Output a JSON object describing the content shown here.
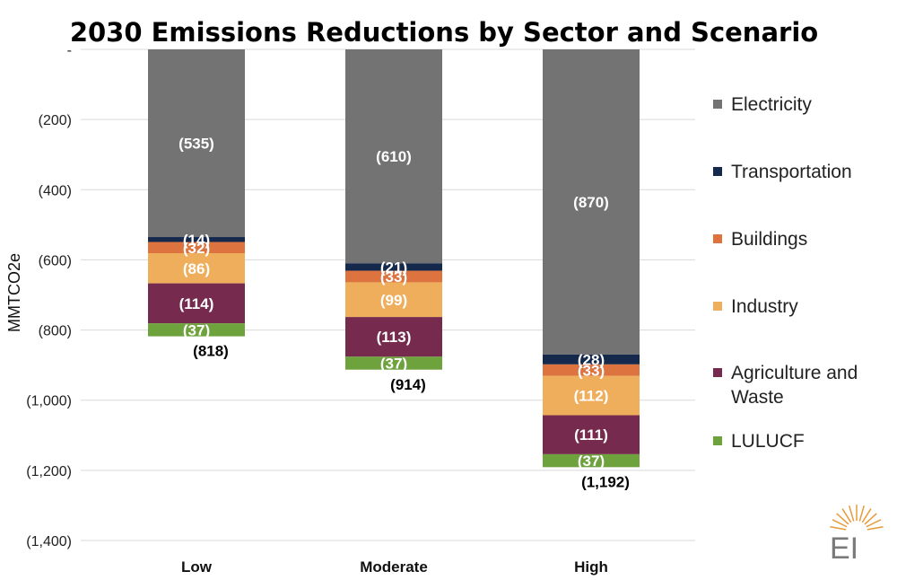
{
  "chart_data": {
    "type": "bar",
    "stacked": true,
    "title": "2030 Emissions Reductions by Sector and Scenario",
    "ylabel": "MMTCO2e",
    "ylim": [
      -1400,
      0
    ],
    "grid": true,
    "legend_position": "right",
    "categories": [
      "Low",
      "Moderate",
      "High"
    ],
    "yticks": [
      {
        "value": 0,
        "label": "-"
      },
      {
        "value": -200,
        "label": "(200)"
      },
      {
        "value": -400,
        "label": "(400)"
      },
      {
        "value": -600,
        "label": "(600)"
      },
      {
        "value": -800,
        "label": "(800)"
      },
      {
        "value": -1000,
        "label": "(1,000)"
      },
      {
        "value": -1200,
        "label": "(1,200)"
      },
      {
        "value": -1400,
        "label": "(1,400)"
      }
    ],
    "series": [
      {
        "name": "Electricity",
        "color": "#737373",
        "label_color": "#ffffff",
        "values": [
          -535,
          -610,
          -870
        ],
        "labels": [
          "(535)",
          "(610)",
          "(870)"
        ]
      },
      {
        "name": "Transportation",
        "color": "#15294d",
        "label_color": "#ffffff",
        "values": [
          -14,
          -21,
          -28
        ],
        "labels": [
          "(14)",
          "(21)",
          "(28)"
        ]
      },
      {
        "name": "Buildings",
        "color": "#dd7440",
        "label_color": "#ffffff",
        "values": [
          -32,
          -33,
          -33
        ],
        "labels": [
          "(32)",
          "(33)",
          "(33)"
        ]
      },
      {
        "name": "Industry",
        "color": "#eeae5c",
        "label_color": "#ffffff",
        "values": [
          -86,
          -99,
          -112
        ],
        "labels": [
          "(86)",
          "(99)",
          "(112)"
        ]
      },
      {
        "name": "Agriculture and Waste",
        "color": "#762a4e",
        "label_color": "#ffffff",
        "values": [
          -114,
          -113,
          -111
        ],
        "labels": [
          "(114)",
          "(113)",
          "(111)"
        ]
      },
      {
        "name": "LULUCF",
        "color": "#6ea23d",
        "label_color": "#ffffff",
        "values": [
          -37,
          -37,
          -37
        ],
        "labels": [
          "(37)",
          "(37)",
          "(37)"
        ]
      }
    ],
    "totals": [
      {
        "value": -818,
        "label": "(818)"
      },
      {
        "value": -914,
        "label": "(914)"
      },
      {
        "value": -1192,
        "label": "(1,192)"
      }
    ]
  },
  "logo": {
    "text": "EI",
    "color": "#e79a3b"
  }
}
